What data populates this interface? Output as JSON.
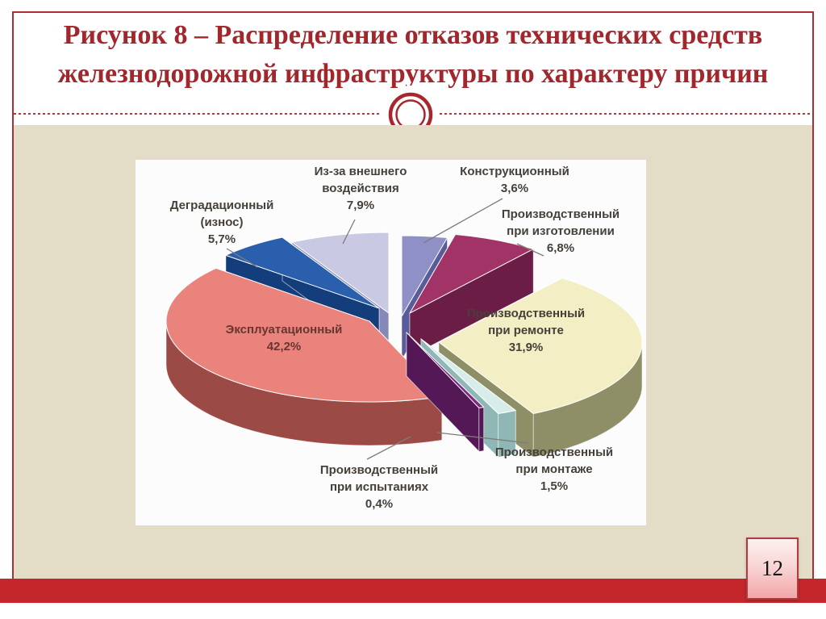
{
  "slide": {
    "title_lines": [
      "Рисунок 8 – Распределение отказов технических средств",
      "железнодорожной инфраструктуры по характеру причин"
    ],
    "page_number": "12",
    "accent_colors": {
      "frame_red": "#a93136",
      "title_red": "#a1272c",
      "footer_red": "#c4262c",
      "content_beige": "#e3ddc8",
      "badge_pink": "#f2a6a8"
    }
  },
  "chart_data": {
    "type": "pie",
    "style": "3d-exploded",
    "title": "",
    "unit": "%",
    "decimal_separator": ",",
    "start_angle_deg": 0,
    "direction": "clockwise",
    "total": 100.0,
    "slices": [
      {
        "key": "constructional",
        "label": "Конструкционный",
        "label_lines": [
          "Конструкционный",
          "3,6%"
        ],
        "value": 3.6,
        "display": "3,6%",
        "color_top": "#8e90c6",
        "color_side": "#585c9b"
      },
      {
        "key": "manufacturing",
        "label": "Производственный при изготовлении",
        "label_lines": [
          "Производственный",
          "при изготовлении",
          "6,8%"
        ],
        "value": 6.8,
        "display": "6,8%",
        "color_top": "#a13366",
        "color_side": "#6b1d45"
      },
      {
        "key": "repair",
        "label": "Производственный при ремонте",
        "label_lines": [
          "Производственный",
          "при ремонте",
          "31,9%"
        ],
        "value": 31.9,
        "display": "31,9%",
        "color_top": "#f3eec3",
        "color_side": "#8e8e67"
      },
      {
        "key": "mounting",
        "label": "Производственный при монтаже",
        "label_lines": [
          "Производственный",
          "при монтаже",
          "1,5%"
        ],
        "value": 1.5,
        "display": "1,5%",
        "color_top": "#d8ecea",
        "color_side": "#8fb7b5"
      },
      {
        "key": "testing",
        "label": "Производственный при испытаниях",
        "label_lines": [
          "Производственный",
          "при испытаниях",
          "0,4%"
        ],
        "value": 0.4,
        "display": "0,4%",
        "color_top": "#7c2d81",
        "color_side": "#541857"
      },
      {
        "key": "operational",
        "label": "Эксплуатационный",
        "label_lines": [
          "Эксплуатационный",
          "42,2%"
        ],
        "value": 42.2,
        "display": "42,2%",
        "color_top": "#e9837b",
        "color_side": "#9c4a45"
      },
      {
        "key": "degradation",
        "label": "Деградационный (износ)",
        "label_lines": [
          "Деградационный",
          "(износ)",
          "5,7%"
        ],
        "value": 5.7,
        "display": "5,7%",
        "color_top": "#2a5fad",
        "color_side": "#143d7c"
      },
      {
        "key": "external",
        "label": "Из-за внешнего воздействия",
        "label_lines": [
          "Из-за внешнего",
          "воздействия",
          "7,9%"
        ],
        "value": 7.9,
        "display": "7,9%",
        "color_top": "#c9c9e3",
        "color_side": "#8689b8"
      }
    ]
  }
}
